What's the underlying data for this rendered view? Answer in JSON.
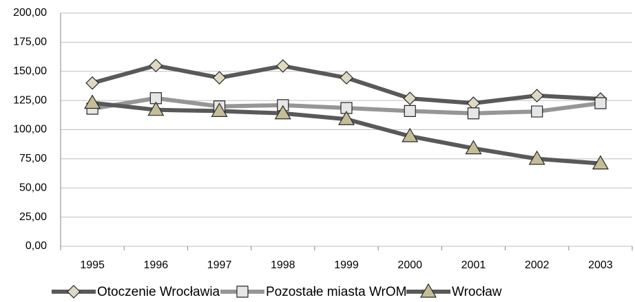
{
  "chart_data": {
    "type": "line",
    "categories": [
      "1995",
      "1996",
      "1997",
      "1998",
      "1999",
      "2000",
      "2001",
      "2002",
      "2003"
    ],
    "series": [
      {
        "name": "Otoczenie Wrocławia",
        "color": "#595959",
        "marker": "diamond",
        "marker_color": "#ddd9c3",
        "values": [
          140,
          155,
          144.5,
          154.6,
          144.5,
          126.8,
          122.7,
          129.2,
          126.3
        ]
      },
      {
        "name": "Pozostałe miasta WrOM",
        "color": "#969696",
        "marker": "square",
        "marker_color": "#e6e6e6",
        "values": [
          118,
          127,
          120,
          121,
          118.6,
          116,
          114,
          115.6,
          122.7
        ]
      },
      {
        "name": "Wrocław",
        "color": "#595959",
        "marker": "triangle",
        "marker_color": "#c4bd97",
        "values": [
          123,
          117,
          116,
          114,
          109,
          94.4,
          84,
          75,
          71
        ]
      }
    ],
    "ylim": [
      0,
      200
    ],
    "yticks": [
      {
        "value": 0,
        "label": "0,00"
      },
      {
        "value": 25,
        "label": "25,00"
      },
      {
        "value": 50,
        "label": "50,00"
      },
      {
        "value": 75,
        "label": "75,00"
      },
      {
        "value": 100,
        "label": "100,00"
      },
      {
        "value": 125,
        "label": "125,00"
      },
      {
        "value": 150,
        "label": "150,00"
      },
      {
        "value": 175,
        "label": "175,00"
      },
      {
        "value": 200,
        "label": "200,00"
      }
    ],
    "grid": true,
    "legend": "bottom"
  }
}
